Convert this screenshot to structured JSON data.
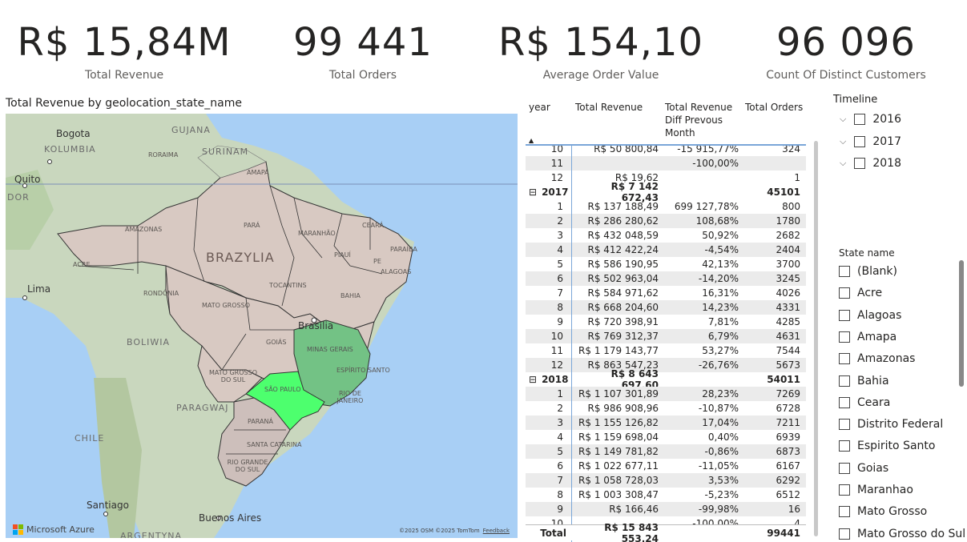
{
  "kpis": [
    {
      "value": "R$ 15,84M",
      "label": "Total Revenue"
    },
    {
      "value": "99 441",
      "label": "Total Orders"
    },
    {
      "value": "R$ 154,10",
      "label": "Average Order Value"
    },
    {
      "value": "96 096",
      "label": "Count Of Distinct Customers"
    }
  ],
  "map": {
    "title": "Total Revenue by geolocation_state_name",
    "labels": {
      "amazonas": "AMAZONAS",
      "para": "PARÁ",
      "brazylia": "BRAZYLIA",
      "maranhao": "MARANHÃO",
      "ceara": "CEARÁ",
      "piaui": "PIAUÍ",
      "paraiba": "PARAÍBA",
      "pe": "PE",
      "alagoas": "ALAGOAS",
      "acre": "ACRE",
      "rondonia": "RONDÔNIA",
      "tocantins": "TOCANTINS",
      "bahia": "BAHIA",
      "mato_grosso": "MATO GROSSO",
      "goias": "GOIÁS",
      "minas_gerais": "MINAS GERAIS",
      "brasilia": "Brasília",
      "espirito_santo": "ESPÍRITO SANTO",
      "mato_grosso_do_sul": "MATO GROSSO DO SUL",
      "sao_paulo": "SÃO PAULO",
      "rio_de_janeiro": "RIO DE JANEIRO",
      "parana": "PARANÁ",
      "santa_catarina": "SANTA CATARINA",
      "rio_grande_do_sul": "RIO GRANDE DO SUL",
      "roraima": "RORAIMA",
      "amapa": "AMAPÁ",
      "bogota": "Bogota",
      "kolumbia": "KOLUMBIA",
      "guiana": "GUJANA",
      "surinam": "SURINAM",
      "quito": "Quito",
      "dor": "DOR",
      "lima": "Lima",
      "boliwia": "BOLIWIA",
      "paragwaj": "PARAGWAJ",
      "chile": "CHILE",
      "santiago": "Santiago",
      "buenos_aires": "Buenos Aires",
      "argentyna": "ARGENTYNA"
    },
    "logo_text": "Microsoft Azure",
    "attribution": "©2025 OSM  ©2025 TomTom",
    "feedback": "Feedback",
    "colors": {
      "ocean": "#a8cff5",
      "land": "#c9d7be",
      "brazil": "#d8c9c2",
      "highlight_sp": "#4dff6e",
      "highlight_mg": "#73c285"
    }
  },
  "table": {
    "headers": {
      "year": "year",
      "revenue": "Total Revenue",
      "diff": "Total Revenue Diff Prevous Month",
      "orders": "Total Orders"
    },
    "rows": [
      {
        "c1": "10",
        "c2": "R$ 50 800,84",
        "c3": "-15 915,77%",
        "c4": "324"
      },
      {
        "c1": "11",
        "c2": "",
        "c3": "-100,00%",
        "c4": ""
      },
      {
        "c1": "12",
        "c2": "R$ 19,62",
        "c3": "",
        "c4": "1"
      },
      {
        "c1": "2017",
        "c2": "R$ 7 142 672,43",
        "c3": "",
        "c4": "45101",
        "group": true
      },
      {
        "c1": "1",
        "c2": "R$ 137 188,49",
        "c3": "699 127,78%",
        "c4": "800"
      },
      {
        "c1": "2",
        "c2": "R$ 286 280,62",
        "c3": "108,68%",
        "c4": "1780"
      },
      {
        "c1": "3",
        "c2": "R$ 432 048,59",
        "c3": "50,92%",
        "c4": "2682"
      },
      {
        "c1": "4",
        "c2": "R$ 412 422,24",
        "c3": "-4,54%",
        "c4": "2404"
      },
      {
        "c1": "5",
        "c2": "R$ 586 190,95",
        "c3": "42,13%",
        "c4": "3700"
      },
      {
        "c1": "6",
        "c2": "R$ 502 963,04",
        "c3": "-14,20%",
        "c4": "3245"
      },
      {
        "c1": "7",
        "c2": "R$ 584 971,62",
        "c3": "16,31%",
        "c4": "4026"
      },
      {
        "c1": "8",
        "c2": "R$ 668 204,60",
        "c3": "14,23%",
        "c4": "4331"
      },
      {
        "c1": "9",
        "c2": "R$ 720 398,91",
        "c3": "7,81%",
        "c4": "4285"
      },
      {
        "c1": "10",
        "c2": "R$ 769 312,37",
        "c3": "6,79%",
        "c4": "4631"
      },
      {
        "c1": "11",
        "c2": "R$ 1 179 143,77",
        "c3": "53,27%",
        "c4": "7544"
      },
      {
        "c1": "12",
        "c2": "R$ 863 547,23",
        "c3": "-26,76%",
        "c4": "5673"
      },
      {
        "c1": "2018",
        "c2": "R$ 8 643 697,60",
        "c3": "",
        "c4": "54011",
        "group": true
      },
      {
        "c1": "1",
        "c2": "R$ 1 107 301,89",
        "c3": "28,23%",
        "c4": "7269"
      },
      {
        "c1": "2",
        "c2": "R$ 986 908,96",
        "c3": "-10,87%",
        "c4": "6728"
      },
      {
        "c1": "3",
        "c2": "R$ 1 155 126,82",
        "c3": "17,04%",
        "c4": "7211"
      },
      {
        "c1": "4",
        "c2": "R$ 1 159 698,04",
        "c3": "0,40%",
        "c4": "6939"
      },
      {
        "c1": "5",
        "c2": "R$ 1 149 781,82",
        "c3": "-0,86%",
        "c4": "6873"
      },
      {
        "c1": "6",
        "c2": "R$ 1 022 677,11",
        "c3": "-11,05%",
        "c4": "6167"
      },
      {
        "c1": "7",
        "c2": "R$ 1 058 728,03",
        "c3": "3,53%",
        "c4": "6292"
      },
      {
        "c1": "8",
        "c2": "R$ 1 003 308,47",
        "c3": "-5,23%",
        "c4": "6512"
      },
      {
        "c1": "9",
        "c2": "R$ 166,46",
        "c3": "-99,98%",
        "c4": "16"
      },
      {
        "c1": "10",
        "c2": "",
        "c3": "-100,00%",
        "c4": "4"
      }
    ],
    "total": {
      "label": "Total",
      "revenue": "R$ 15 843 553,24",
      "diff": "",
      "orders": "99441"
    },
    "expander_symbol": "⊟"
  },
  "timeline": {
    "title": "Timeline",
    "items": [
      "2016",
      "2017",
      "2018"
    ]
  },
  "state_slicer": {
    "title": "State name",
    "items": [
      "(Blank)",
      "Acre",
      "Alagoas",
      "Amapa",
      "Amazonas",
      "Bahia",
      "Ceara",
      "Distrito Federal",
      "Espirito Santo",
      "Goias",
      "Maranhao",
      "Mato Grosso",
      "Mato Grosso do Sul"
    ]
  }
}
